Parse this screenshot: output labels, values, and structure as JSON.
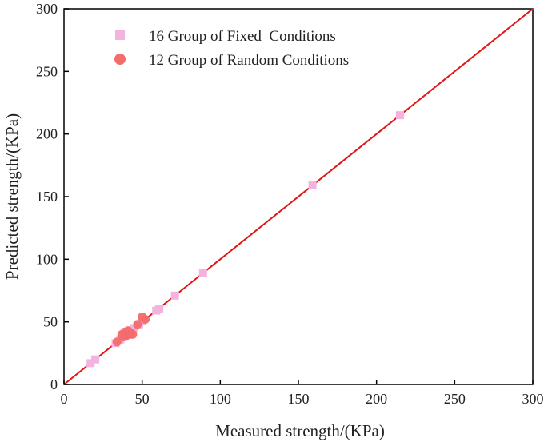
{
  "chart_data": {
    "type": "scatter",
    "xlabel": "Measured strength/(KPa)",
    "ylabel": "Predicted strength/(KPa)",
    "xlim": [
      0,
      300
    ],
    "ylim": [
      0,
      300
    ],
    "xticks": [
      0,
      50,
      100,
      150,
      200,
      250,
      300
    ],
    "yticks": [
      0,
      50,
      100,
      150,
      200,
      250,
      300
    ],
    "grid": false,
    "legend_position": "top-left",
    "series": [
      {
        "name": "16 Group of Fixed  Conditions",
        "marker": "square",
        "color": "#f4b3df",
        "points": [
          [
            17,
            17
          ],
          [
            20,
            20
          ],
          [
            33,
            33
          ],
          [
            36,
            36
          ],
          [
            40,
            40
          ],
          [
            42,
            42
          ],
          [
            45,
            45
          ],
          [
            48,
            48
          ],
          [
            50,
            51
          ],
          [
            59,
            59
          ],
          [
            61,
            60
          ],
          [
            71,
            71
          ],
          [
            89,
            89
          ],
          [
            159,
            159
          ],
          [
            215,
            215
          ],
          [
            38,
            38
          ]
        ]
      },
      {
        "name": "12 Group of Random Conditions",
        "marker": "circle",
        "color": "#f26d6d",
        "points": [
          [
            34,
            34
          ],
          [
            37,
            40
          ],
          [
            38,
            38
          ],
          [
            39,
            42
          ],
          [
            40,
            39
          ],
          [
            41,
            43
          ],
          [
            42,
            40
          ],
          [
            43,
            41
          ],
          [
            44,
            40
          ],
          [
            47,
            48
          ],
          [
            50,
            54
          ],
          [
            52,
            52
          ]
        ]
      }
    ],
    "reference_line": {
      "from": [
        0,
        0
      ],
      "to": [
        300,
        300
      ],
      "color": "#e01515"
    }
  }
}
